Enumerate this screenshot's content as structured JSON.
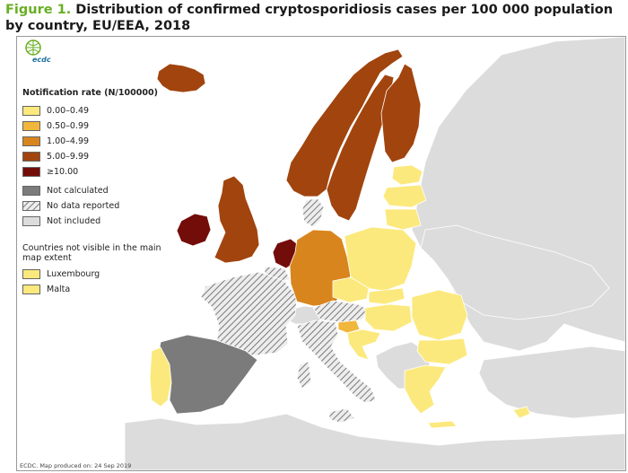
{
  "figure_label": "Figure 1.",
  "title": "Distribution of confirmed cryptosporidiosis cases per 100 000 population by country, EU/EEA, 2018",
  "logo_text": "ecdc",
  "legend": {
    "title": "Notification rate (N/100000)",
    "classes": [
      {
        "label": "0.00–0.49",
        "color": "#fce97d"
      },
      {
        "label": "0.50–0.99",
        "color": "#f1b63c"
      },
      {
        "label": "1.00–4.99",
        "color": "#d9851d"
      },
      {
        "label": "5.00–9.99",
        "color": "#a1440e"
      },
      {
        "label": "≥10.00",
        "color": "#730d0a"
      }
    ],
    "not_calculated": {
      "label": "Not calculated",
      "color": "#7b7b7b"
    },
    "no_data": {
      "label": "No data reported",
      "color": "#bdbdbd"
    },
    "not_included": {
      "label": "Not included",
      "color": "#dcdcdc"
    },
    "small_title": "Countries not visible in the main map extent",
    "small_countries": [
      {
        "label": "Luxembourg",
        "color": "#fce97d"
      },
      {
        "label": "Malta",
        "color": "#fce97d"
      }
    ]
  },
  "footer": "ECDC. Map produced on: 24 Sep 2019",
  "countries": [
    {
      "name": "Iceland",
      "rate_class": "5.00–9.99"
    },
    {
      "name": "Norway",
      "rate_class": "5.00–9.99"
    },
    {
      "name": "Sweden",
      "rate_class": "5.00–9.99"
    },
    {
      "name": "Finland",
      "rate_class": "5.00–9.99"
    },
    {
      "name": "Denmark",
      "rate_class": "no_data"
    },
    {
      "name": "United Kingdom",
      "rate_class": "5.00–9.99"
    },
    {
      "name": "Ireland",
      "rate_class": "≥10.00"
    },
    {
      "name": "Netherlands",
      "rate_class": "≥10.00"
    },
    {
      "name": "Belgium",
      "rate_class": "no_data"
    },
    {
      "name": "Luxembourg",
      "rate_class": "0.00–0.49"
    },
    {
      "name": "France",
      "rate_class": "no_data"
    },
    {
      "name": "Germany",
      "rate_class": "1.00–4.99"
    },
    {
      "name": "Poland",
      "rate_class": "0.00–0.49"
    },
    {
      "name": "Czechia",
      "rate_class": "0.00–0.49"
    },
    {
      "name": "Slovakia",
      "rate_class": "0.00–0.49"
    },
    {
      "name": "Austria",
      "rate_class": "no_data"
    },
    {
      "name": "Hungary",
      "rate_class": "0.00–0.49"
    },
    {
      "name": "Slovenia",
      "rate_class": "0.50–0.99"
    },
    {
      "name": "Croatia",
      "rate_class": "0.00–0.49"
    },
    {
      "name": "Italy",
      "rate_class": "no_data"
    },
    {
      "name": "Spain",
      "rate_class": "not_calculated"
    },
    {
      "name": "Portugal",
      "rate_class": "0.00–0.49"
    },
    {
      "name": "Romania",
      "rate_class": "0.00–0.49"
    },
    {
      "name": "Bulgaria",
      "rate_class": "0.00–0.49"
    },
    {
      "name": "Greece",
      "rate_class": "0.00–0.49"
    },
    {
      "name": "Cyprus",
      "rate_class": "0.00–0.49"
    },
    {
      "name": "Estonia",
      "rate_class": "0.00–0.49"
    },
    {
      "name": "Latvia",
      "rate_class": "0.00–0.49"
    },
    {
      "name": "Lithuania",
      "rate_class": "0.00–0.49"
    },
    {
      "name": "Malta",
      "rate_class": "0.00–0.49"
    }
  ]
}
